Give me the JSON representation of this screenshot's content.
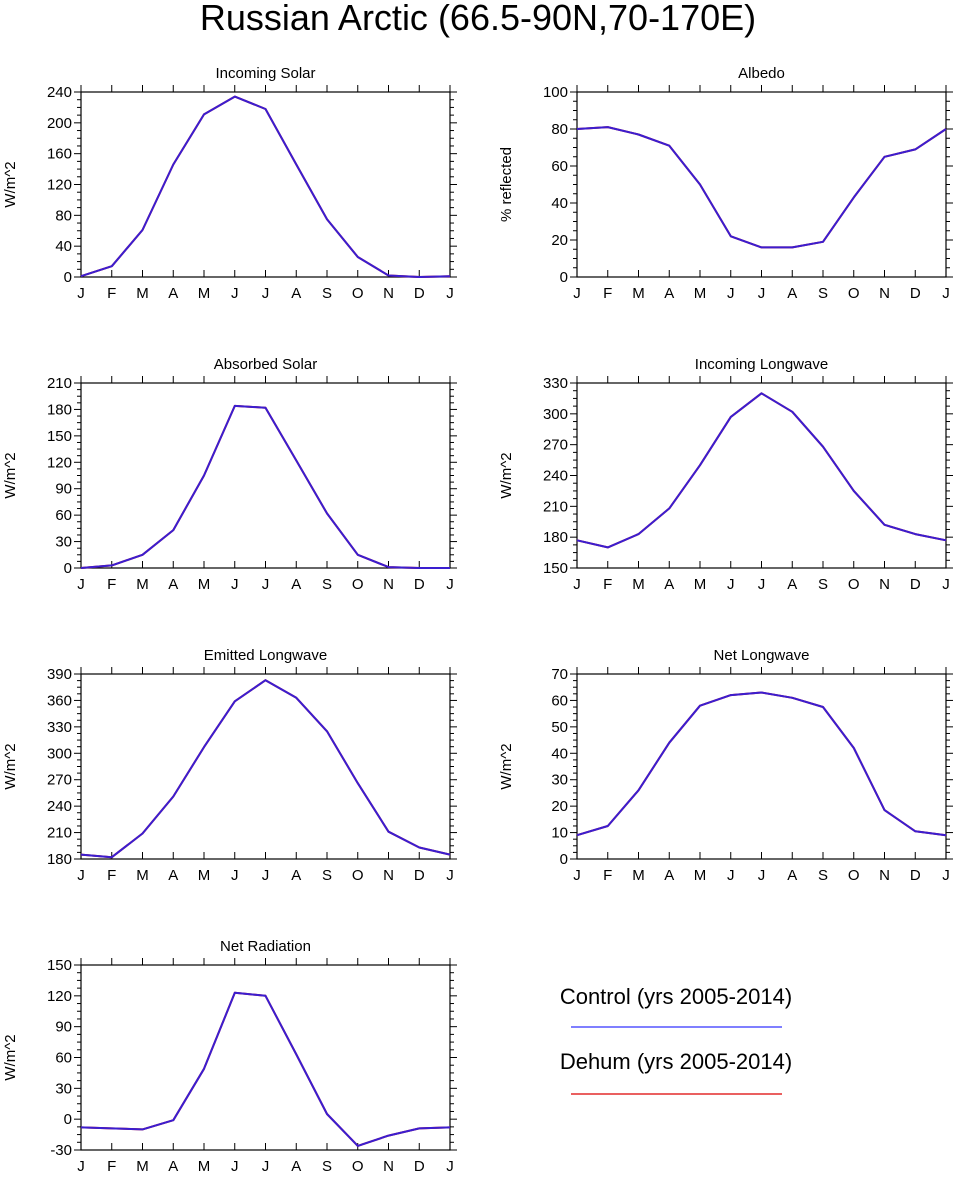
{
  "figure": {
    "title": "Russian Arctic (66.5-90N,70-170E)"
  },
  "legend": {
    "entries": [
      {
        "label": "Control (yrs 2005-2014)",
        "color": "#3333ff"
      },
      {
        "label": "Dehum (yrs 2005-2014)",
        "color": "#dd0000"
      }
    ]
  },
  "colors": {
    "control": "#3333ff",
    "dehum": "#dd0000",
    "overlap": "#3a1ed0"
  },
  "chart_data": [
    {
      "type": "line",
      "title": "Incoming Solar",
      "ylabel": "W/m^2",
      "x": [
        "J",
        "F",
        "M",
        "A",
        "M",
        "J",
        "J",
        "A",
        "S",
        "O",
        "N",
        "D",
        "J"
      ],
      "ylim": [
        0,
        240
      ],
      "yticks": [
        0,
        40,
        80,
        120,
        160,
        200,
        240
      ],
      "series": [
        {
          "name": "Control (yrs 2005-2014)",
          "values": [
            1,
            14,
            61,
            146,
            211,
            234,
            218,
            146,
            75,
            26,
            2,
            0,
            1
          ]
        },
        {
          "name": "Dehum (yrs 2005-2014)",
          "values": [
            1,
            14,
            61,
            146,
            211,
            234,
            218,
            146,
            75,
            26,
            2,
            0,
            1
          ]
        }
      ]
    },
    {
      "type": "line",
      "title": "Albedo",
      "ylabel": "% reflected",
      "x": [
        "J",
        "F",
        "M",
        "A",
        "M",
        "J",
        "J",
        "A",
        "S",
        "O",
        "N",
        "D",
        "J"
      ],
      "ylim": [
        0,
        100
      ],
      "yticks": [
        0,
        20,
        40,
        60,
        80,
        100
      ],
      "series": [
        {
          "name": "Control (yrs 2005-2014)",
          "values": [
            80,
            81,
            77,
            71,
            50,
            22,
            16,
            16,
            19,
            43,
            65,
            69,
            80
          ]
        },
        {
          "name": "Dehum (yrs 2005-2014)",
          "values": [
            80,
            81,
            77,
            71,
            50,
            22,
            16,
            16,
            19,
            43,
            65,
            69,
            80
          ]
        }
      ]
    },
    {
      "type": "line",
      "title": "Absorbed Solar",
      "ylabel": "W/m^2",
      "x": [
        "J",
        "F",
        "M",
        "A",
        "M",
        "J",
        "J",
        "A",
        "S",
        "O",
        "N",
        "D",
        "J"
      ],
      "ylim": [
        0,
        210
      ],
      "yticks": [
        0,
        30,
        60,
        90,
        120,
        150,
        180,
        210
      ],
      "series": [
        {
          "name": "Control (yrs 2005-2014)",
          "values": [
            0,
            3,
            15,
            43,
            105,
            184,
            182,
            122,
            62,
            15,
            1,
            0,
            0
          ]
        },
        {
          "name": "Dehum (yrs 2005-2014)",
          "values": [
            0,
            3,
            15,
            43,
            105,
            184,
            182,
            122,
            62,
            15,
            1,
            0,
            0
          ]
        }
      ]
    },
    {
      "type": "line",
      "title": "Incoming Longwave",
      "ylabel": "W/m^2",
      "x": [
        "J",
        "F",
        "M",
        "A",
        "M",
        "J",
        "J",
        "A",
        "S",
        "O",
        "N",
        "D",
        "J"
      ],
      "ylim": [
        150,
        330
      ],
      "yticks": [
        150,
        180,
        210,
        240,
        270,
        300,
        330
      ],
      "series": [
        {
          "name": "Control (yrs 2005-2014)",
          "values": [
            177,
            170,
            183,
            208,
            250,
            297,
            320,
            302,
            268,
            225,
            192,
            183,
            177
          ]
        },
        {
          "name": "Dehum (yrs 2005-2014)",
          "values": [
            177,
            170,
            183,
            208,
            250,
            297,
            320,
            302,
            268,
            225,
            192,
            183,
            177
          ]
        }
      ]
    },
    {
      "type": "line",
      "title": "Emitted Longwave",
      "ylabel": "W/m^2",
      "x": [
        "J",
        "F",
        "M",
        "A",
        "M",
        "J",
        "J",
        "A",
        "S",
        "O",
        "N",
        "D",
        "J"
      ],
      "ylim": [
        180,
        390
      ],
      "yticks": [
        180,
        210,
        240,
        270,
        300,
        330,
        360,
        390
      ],
      "series": [
        {
          "name": "Control (yrs 2005-2014)",
          "values": [
            185,
            182,
            209,
            251,
            307,
            359,
            383,
            363,
            325,
            266,
            211,
            193,
            185
          ]
        },
        {
          "name": "Dehum (yrs 2005-2014)",
          "values": [
            185,
            182,
            209,
            251,
            307,
            359,
            383,
            363,
            325,
            266,
            211,
            193,
            185
          ]
        }
      ]
    },
    {
      "type": "line",
      "title": "Net Longwave",
      "ylabel": "W/m^2",
      "x": [
        "J",
        "F",
        "M",
        "A",
        "M",
        "J",
        "J",
        "A",
        "S",
        "O",
        "N",
        "D",
        "J"
      ],
      "ylim": [
        0,
        70
      ],
      "yticks": [
        0,
        10,
        20,
        30,
        40,
        50,
        60,
        70
      ],
      "series": [
        {
          "name": "Control (yrs 2005-2014)",
          "values": [
            9,
            12.5,
            26,
            44,
            58,
            62,
            63,
            61,
            57.5,
            42,
            18.5,
            10.5,
            9
          ]
        },
        {
          "name": "Dehum (yrs 2005-2014)",
          "values": [
            9,
            12.5,
            26,
            44,
            58,
            62,
            63,
            61,
            57.5,
            42,
            18.5,
            10.5,
            9
          ]
        }
      ]
    },
    {
      "type": "line",
      "title": "Net Radiation",
      "ylabel": "W/m^2",
      "x": [
        "J",
        "F",
        "M",
        "A",
        "M",
        "J",
        "J",
        "A",
        "S",
        "O",
        "N",
        "D",
        "J"
      ],
      "ylim": [
        -30,
        150
      ],
      "yticks": [
        -30,
        0,
        30,
        60,
        90,
        120,
        150
      ],
      "series": [
        {
          "name": "Control (yrs 2005-2014)",
          "values": [
            -8,
            -9,
            -10,
            -1,
            49,
            123,
            120,
            63,
            5,
            -26,
            -16,
            -9,
            -8
          ]
        },
        {
          "name": "Dehum (yrs 2005-2014)",
          "values": [
            -8,
            -9,
            -10,
            -1,
            49,
            123,
            120,
            63,
            5,
            -26,
            -16,
            -9,
            -8
          ]
        }
      ]
    }
  ]
}
